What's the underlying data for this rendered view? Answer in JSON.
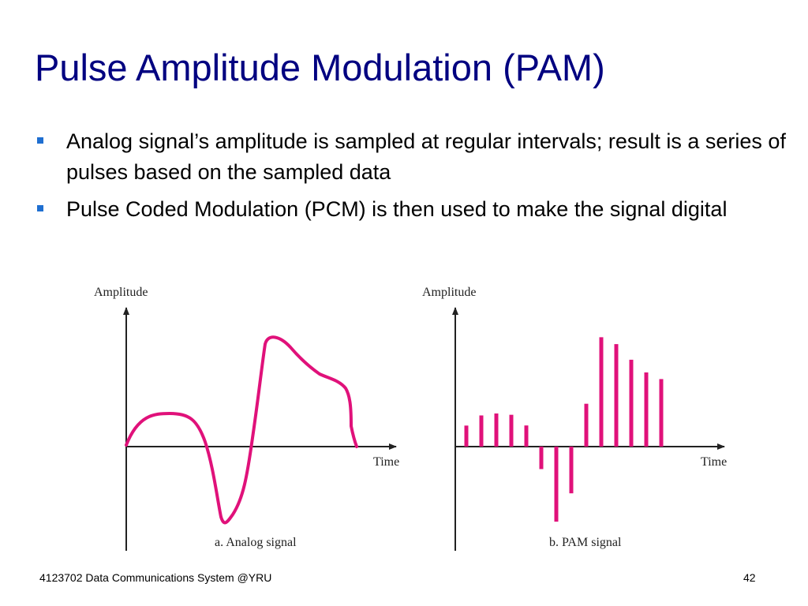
{
  "slide": {
    "title": "Pulse Amplitude Modulation (PAM)",
    "bullets": [
      "Analog signal’s amplitude is sampled at regular intervals; result is a series of pulses based on the sampled data",
      "Pulse Coded Modulation (PCM) is then used to make the signal digital"
    ]
  },
  "figure": {
    "analog": {
      "ylabel": "Amplitude",
      "xlabel": "Time",
      "caption": "a. Analog signal"
    },
    "pam": {
      "ylabel": "Amplitude",
      "xlabel": "Time",
      "caption": "b. PAM signal"
    }
  },
  "colors": {
    "accent": "#e0117a",
    "title": "#000080",
    "bullet": "#1f6fd1"
  },
  "footer": {
    "course": "4123702 Data Communications System @YRU",
    "page": "42"
  }
}
